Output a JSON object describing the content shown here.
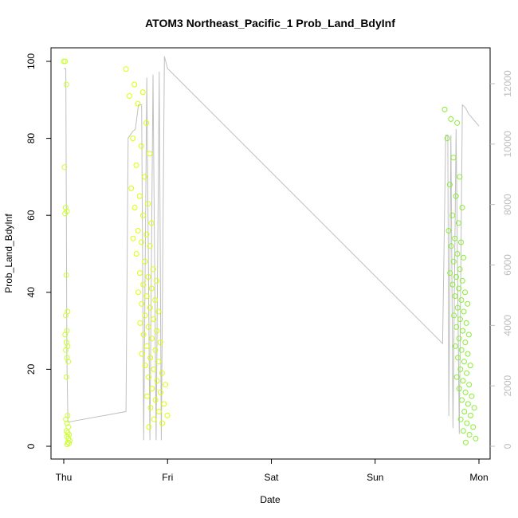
{
  "chart_data": {
    "type": "scatter",
    "title": "ATOM3 Northeast_Pacific_1 Prob_Land_BdyInf",
    "xlabel": "Date",
    "ylabel": "Prob_Land_BdyInf",
    "x_ticks": [
      "Thu",
      "Fri",
      "Sat",
      "Sun",
      "Mon"
    ],
    "y_ticks": [
      "0",
      "20",
      "40",
      "60",
      "80",
      "100"
    ],
    "y2_ticks": [
      "0",
      "2000",
      "4000",
      "6000",
      "8000",
      "10000",
      "12000"
    ],
    "xlim_days": [
      0,
      4
    ],
    "ylim": [
      0,
      100
    ],
    "y2lim": [
      0,
      13000
    ],
    "grid": false,
    "legend": "none",
    "colors": {
      "points_early": "#ccff33",
      "points_mid": "#ddff00",
      "points_late": "#88ee33",
      "line": "#bfbfbf",
      "axis": "#000000",
      "right_axis": "#bdbdbd"
    },
    "series": [
      {
        "type": "scatter",
        "clusters": [
          {
            "day_start": 0.0,
            "day_end": 0.06,
            "values": [
              100,
              100,
              94,
              72.5,
              62,
              61,
              60.5,
              44.5,
              35,
              34,
              30,
              29,
              27,
              26,
              25,
              23,
              22,
              18,
              8,
              7,
              6,
              5,
              4,
              3.5,
              3,
              2.5,
              2,
              1.5,
              1,
              0.8,
              0.5
            ]
          },
          {
            "day_start": 0.6,
            "day_end": 1.02,
            "values": [
              98,
              94,
              92,
              91,
              89,
              84,
              80,
              78,
              76,
              73,
              70,
              67,
              65,
              63,
              62,
              60,
              58,
              56,
              55,
              54,
              53,
              52,
              50,
              48,
              46,
              45,
              44,
              43,
              42,
              41,
              40,
              39,
              38,
              37,
              36,
              35,
              34,
              33,
              32,
              31,
              30,
              29,
              28,
              27,
              26,
              25,
              24,
              23,
              22,
              21,
              20,
              19,
              18,
              17,
              16,
              15,
              14,
              13,
              12,
              11,
              10,
              9,
              8,
              7,
              6,
              5
            ]
          },
          {
            "day_start": 3.67,
            "day_end": 3.98,
            "values": [
              87.5,
              85,
              84,
              80,
              75,
              70,
              68,
              65,
              62,
              60,
              58,
              56,
              54,
              53,
              52,
              50,
              49,
              48,
              46,
              45,
              44,
              43,
              42,
              41,
              40,
              39,
              38,
              37,
              36,
              35,
              34,
              33,
              32,
              31,
              30,
              29,
              28,
              27,
              26,
              25,
              24,
              23,
              22,
              21,
              20,
              19,
              18,
              17,
              16,
              15,
              14,
              13,
              12,
              11,
              10,
              9,
              8,
              7,
              6,
              5,
              4,
              3,
              2,
              1
            ]
          }
        ]
      },
      {
        "type": "line",
        "axis": "right",
        "points": [
          [
            0.0,
            12500
          ],
          [
            0.02,
            12500
          ],
          [
            0.03,
            3000
          ],
          [
            0.04,
            800
          ],
          [
            0.6,
            1150
          ],
          [
            0.62,
            10200
          ],
          [
            0.66,
            10400
          ],
          [
            0.69,
            10500
          ],
          [
            0.72,
            11300
          ],
          [
            0.75,
            11300
          ],
          [
            0.77,
            200
          ],
          [
            0.8,
            12200
          ],
          [
            0.83,
            200
          ],
          [
            0.86,
            12300
          ],
          [
            0.89,
            200
          ],
          [
            0.92,
            12400
          ],
          [
            0.94,
            200
          ],
          [
            0.97,
            12900
          ],
          [
            1.0,
            12500
          ],
          [
            3.65,
            3400
          ],
          [
            3.68,
            10300
          ],
          [
            3.7,
            10300
          ],
          [
            3.71,
            1000
          ],
          [
            3.73,
            10300
          ],
          [
            3.75,
            600
          ],
          [
            3.78,
            10500
          ],
          [
            3.81,
            400
          ],
          [
            3.84,
            11300
          ],
          [
            3.87,
            11200
          ],
          [
            3.9,
            11000
          ],
          [
            3.95,
            10800
          ],
          [
            4.0,
            10600
          ]
        ]
      }
    ]
  }
}
